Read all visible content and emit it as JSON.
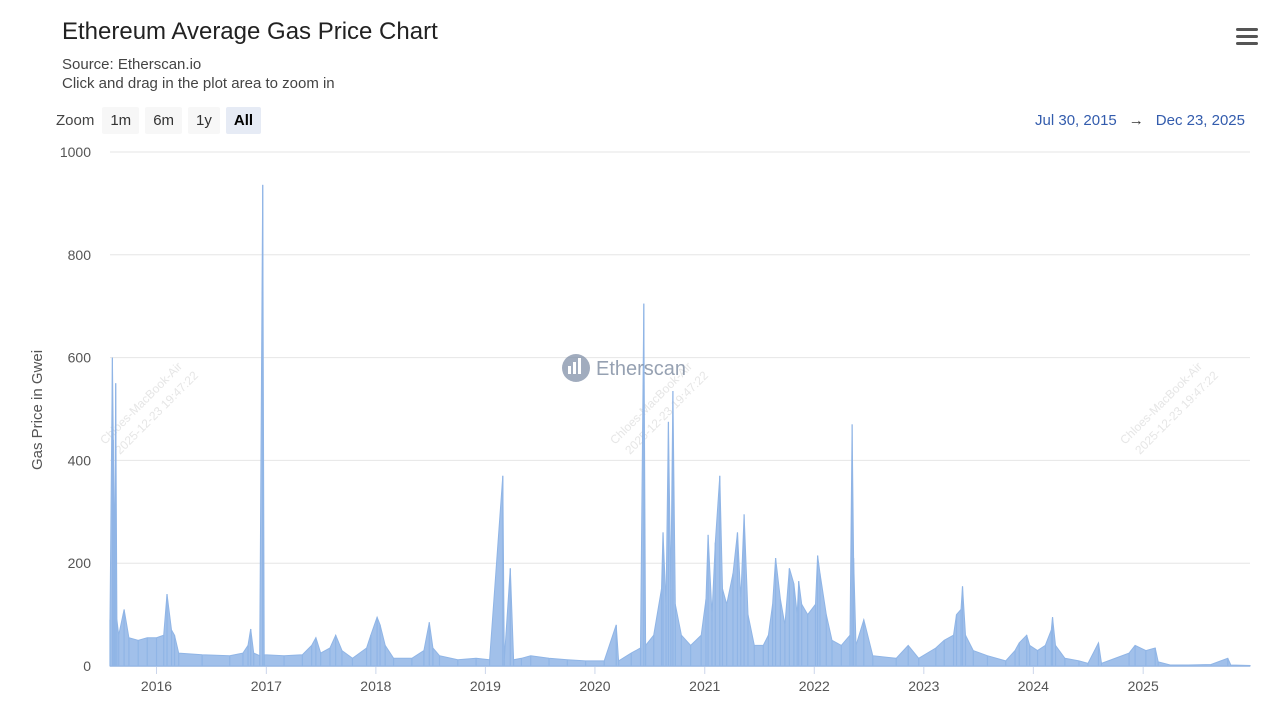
{
  "header": {
    "title": "Ethereum Average Gas Price Chart",
    "source": "Source: Etherscan.io",
    "hint": "Click and drag in the plot area to zoom in"
  },
  "zoom": {
    "label": "Zoom",
    "buttons": [
      "1m",
      "6m",
      "1y",
      "All"
    ],
    "active": "All"
  },
  "range": {
    "from": "Jul 30, 2015",
    "arrow": "→",
    "to": "Dec 23, 2025"
  },
  "logo": {
    "text": "Etherscan",
    "icon": "etherscan-logo-icon"
  },
  "watermarks": [
    "Chloes-MacBook-Air",
    "2025-12-23 19:47:22"
  ],
  "colors": {
    "series": "#90b5e6",
    "grid": "#e6e6e6",
    "accent": "#335cad"
  },
  "chart_data": {
    "type": "area",
    "title": "Ethereum Average Gas Price Chart",
    "ylabel": "Gas Price in Gwei",
    "xlabel": "",
    "ylim": [
      0,
      1000
    ],
    "yticks": [
      0,
      200,
      400,
      600,
      800,
      1000
    ],
    "xlim": [
      "2015-07-30",
      "2025-12-23"
    ],
    "xticks": [
      "2016",
      "2017",
      "2018",
      "2019",
      "2020",
      "2021",
      "2022",
      "2023",
      "2024",
      "2025"
    ],
    "grid": true,
    "series": [
      {
        "points": [
          [
            "2015-07-30",
            90
          ],
          [
            "2015-08-07",
            600
          ],
          [
            "2015-08-10",
            440
          ],
          [
            "2015-08-14",
            190
          ],
          [
            "2015-08-18",
            550
          ],
          [
            "2015-08-22",
            90
          ],
          [
            "2015-08-28",
            60
          ],
          [
            "2015-09-15",
            110
          ],
          [
            "2015-10-01",
            55
          ],
          [
            "2015-11-01",
            50
          ],
          [
            "2015-12-01",
            55
          ],
          [
            "2016-01-01",
            55
          ],
          [
            "2016-01-25",
            60
          ],
          [
            "2016-02-05",
            140
          ],
          [
            "2016-02-20",
            70
          ],
          [
            "2016-03-01",
            60
          ],
          [
            "2016-03-15",
            25
          ],
          [
            "2016-06-01",
            22
          ],
          [
            "2016-09-01",
            20
          ],
          [
            "2016-10-15",
            25
          ],
          [
            "2016-11-01",
            40
          ],
          [
            "2016-11-10",
            72
          ],
          [
            "2016-11-20",
            25
          ],
          [
            "2016-12-10",
            20
          ],
          [
            "2016-12-20",
            936
          ],
          [
            "2016-12-25",
            22
          ],
          [
            "2017-03-01",
            20
          ],
          [
            "2017-05-01",
            22
          ],
          [
            "2017-06-01",
            40
          ],
          [
            "2017-06-15",
            55
          ],
          [
            "2017-07-01",
            25
          ],
          [
            "2017-08-01",
            35
          ],
          [
            "2017-08-20",
            60
          ],
          [
            "2017-09-10",
            30
          ],
          [
            "2017-10-15",
            15
          ],
          [
            "2017-12-01",
            35
          ],
          [
            "2017-12-15",
            60
          ],
          [
            "2018-01-05",
            95
          ],
          [
            "2018-01-15",
            80
          ],
          [
            "2018-02-01",
            40
          ],
          [
            "2018-03-01",
            15
          ],
          [
            "2018-05-01",
            15
          ],
          [
            "2018-06-10",
            30
          ],
          [
            "2018-06-28",
            85
          ],
          [
            "2018-07-10",
            35
          ],
          [
            "2018-08-01",
            20
          ],
          [
            "2018-10-01",
            12
          ],
          [
            "2018-12-01",
            15
          ],
          [
            "2019-01-15",
            12
          ],
          [
            "2019-02-28",
            370
          ],
          [
            "2019-03-05",
            12
          ],
          [
            "2019-03-25",
            190
          ],
          [
            "2019-04-05",
            12
          ],
          [
            "2019-05-01",
            15
          ],
          [
            "2019-06-01",
            20
          ],
          [
            "2019-08-01",
            15
          ],
          [
            "2019-10-01",
            12
          ],
          [
            "2019-12-01",
            10
          ],
          [
            "2020-02-01",
            10
          ],
          [
            "2020-03-12",
            80
          ],
          [
            "2020-03-20",
            10
          ],
          [
            "2020-05-01",
            25
          ],
          [
            "2020-06-01",
            35
          ],
          [
            "2020-06-12",
            705
          ],
          [
            "2020-06-18",
            40
          ],
          [
            "2020-07-15",
            60
          ],
          [
            "2020-08-10",
            150
          ],
          [
            "2020-08-15",
            260
          ],
          [
            "2020-08-25",
            120
          ],
          [
            "2020-09-02",
            475
          ],
          [
            "2020-09-10",
            150
          ],
          [
            "2020-09-17",
            535
          ],
          [
            "2020-09-25",
            120
          ],
          [
            "2020-10-15",
            60
          ],
          [
            "2020-11-15",
            40
          ],
          [
            "2020-12-20",
            60
          ],
          [
            "2021-01-05",
            130
          ],
          [
            "2021-01-12",
            255
          ],
          [
            "2021-01-25",
            100
          ],
          [
            "2021-02-05",
            240
          ],
          [
            "2021-02-20",
            370
          ],
          [
            "2021-03-01",
            150
          ],
          [
            "2021-03-15",
            120
          ],
          [
            "2021-04-05",
            180
          ],
          [
            "2021-04-20",
            260
          ],
          [
            "2021-05-01",
            130
          ],
          [
            "2021-05-12",
            295
          ],
          [
            "2021-05-25",
            100
          ],
          [
            "2021-06-15",
            40
          ],
          [
            "2021-07-15",
            40
          ],
          [
            "2021-08-01",
            60
          ],
          [
            "2021-08-15",
            120
          ],
          [
            "2021-08-25",
            210
          ],
          [
            "2021-09-10",
            130
          ],
          [
            "2021-09-25",
            80
          ],
          [
            "2021-10-10",
            190
          ],
          [
            "2021-10-25",
            160
          ],
          [
            "2021-11-05",
            100
          ],
          [
            "2021-11-10",
            165
          ],
          [
            "2021-11-20",
            120
          ],
          [
            "2021-12-10",
            100
          ],
          [
            "2022-01-05",
            120
          ],
          [
            "2022-01-12",
            215
          ],
          [
            "2022-01-20",
            180
          ],
          [
            "2022-02-10",
            100
          ],
          [
            "2022-03-01",
            50
          ],
          [
            "2022-04-01",
            40
          ],
          [
            "2022-04-30",
            60
          ],
          [
            "2022-05-07",
            470
          ],
          [
            "2022-05-12",
            210
          ],
          [
            "2022-05-20",
            40
          ],
          [
            "2022-06-15",
            90
          ],
          [
            "2022-07-15",
            20
          ],
          [
            "2022-10-01",
            15
          ],
          [
            "2022-11-10",
            40
          ],
          [
            "2022-12-15",
            15
          ],
          [
            "2023-02-10",
            35
          ],
          [
            "2023-03-10",
            50
          ],
          [
            "2023-04-10",
            60
          ],
          [
            "2023-04-20",
            100
          ],
          [
            "2023-05-05",
            110
          ],
          [
            "2023-05-10",
            155
          ],
          [
            "2023-05-20",
            60
          ],
          [
            "2023-06-15",
            30
          ],
          [
            "2023-08-01",
            20
          ],
          [
            "2023-10-01",
            10
          ],
          [
            "2023-11-01",
            30
          ],
          [
            "2023-11-15",
            45
          ],
          [
            "2023-12-10",
            60
          ],
          [
            "2023-12-20",
            40
          ],
          [
            "2024-01-15",
            30
          ],
          [
            "2024-02-10",
            40
          ],
          [
            "2024-03-01",
            70
          ],
          [
            "2024-03-05",
            95
          ],
          [
            "2024-03-15",
            40
          ],
          [
            "2024-04-15",
            15
          ],
          [
            "2024-06-01",
            10
          ],
          [
            "2024-07-01",
            5
          ],
          [
            "2024-08-05",
            45
          ],
          [
            "2024-08-15",
            5
          ],
          [
            "2024-11-15",
            25
          ],
          [
            "2024-12-05",
            40
          ],
          [
            "2025-01-10",
            30
          ],
          [
            "2025-02-10",
            35
          ],
          [
            "2025-02-20",
            8
          ],
          [
            "2025-04-01",
            2
          ],
          [
            "2025-06-01",
            2
          ],
          [
            "2025-08-15",
            3
          ],
          [
            "2025-10-10",
            15
          ],
          [
            "2025-10-20",
            2
          ],
          [
            "2025-12-23",
            1
          ]
        ]
      }
    ]
  }
}
